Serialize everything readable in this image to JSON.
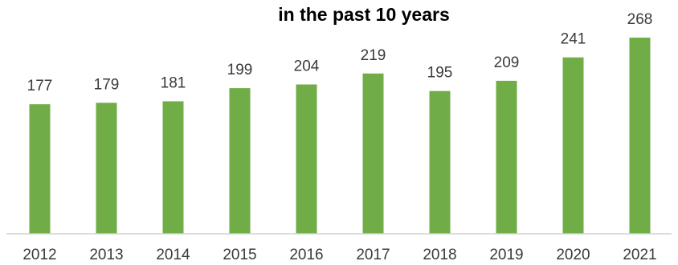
{
  "chart_data": {
    "type": "bar",
    "title": "in the past 10 years",
    "categories": [
      "2012",
      "2013",
      "2014",
      "2015",
      "2016",
      "2017",
      "2018",
      "2019",
      "2020",
      "2021"
    ],
    "values": [
      177,
      179,
      181,
      199,
      204,
      219,
      195,
      209,
      241,
      268
    ],
    "data_labels": [
      "177",
      "179",
      "181",
      "199",
      "204",
      "219",
      "195",
      "209",
      "241",
      "268"
    ],
    "xlabel": "",
    "ylabel": "",
    "ylim": [
      0,
      268
    ],
    "grid": false,
    "legend": "none",
    "colors": {
      "bar": "#70ad47",
      "axis": "#d0d0d0",
      "text": "#3a3a3a"
    }
  }
}
